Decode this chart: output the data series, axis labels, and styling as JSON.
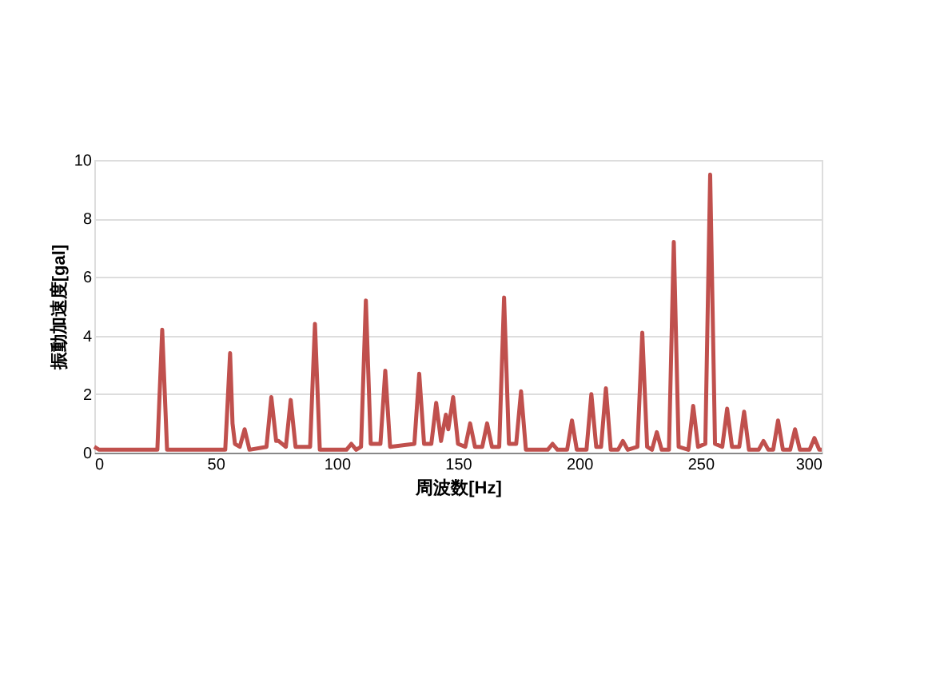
{
  "chart_data": {
    "type": "line",
    "xlabel": "周波数[Hz]",
    "ylabel": "振動加速度[gal]",
    "xlim": [
      0,
      300
    ],
    "xticks": [
      0,
      50,
      100,
      150,
      200,
      250,
      300
    ],
    "ylim": [
      0,
      10
    ],
    "yticks": [
      0,
      2,
      4,
      6,
      8,
      10
    ],
    "grid": "y",
    "legend": false,
    "marker": "none",
    "line_style": "solid",
    "series": [
      {
        "color": "#c0504d",
        "x": [
          0,
          2,
          10,
          20,
          26,
          28,
          30,
          40,
          54,
          56,
          57,
          58,
          60,
          62,
          64,
          71,
          73,
          75,
          76,
          79,
          81,
          83,
          89,
          91,
          93,
          104,
          106,
          108,
          110,
          112,
          114,
          118,
          120,
          122,
          132,
          134,
          136,
          139,
          141,
          143,
          145,
          146,
          148,
          150,
          153,
          155,
          157,
          160,
          162,
          164,
          167,
          169,
          171,
          174,
          176,
          178,
          187,
          189,
          191,
          195,
          197,
          199,
          203,
          205,
          207,
          209,
          211,
          213,
          216,
          218,
          220,
          224,
          226,
          228,
          230,
          232,
          234,
          237,
          239,
          241,
          245,
          247,
          249,
          252,
          254,
          256,
          259,
          261,
          263,
          266,
          268,
          270,
          274,
          276,
          278,
          280,
          282,
          284,
          287,
          289,
          291,
          295,
          297,
          299,
          300
        ],
        "values": [
          0.2,
          0.1,
          0.1,
          0.1,
          0.1,
          4.2,
          0.1,
          0.1,
          0.1,
          3.4,
          1.0,
          0.3,
          0.2,
          0.8,
          0.1,
          0.2,
          1.9,
          0.4,
          0.4,
          0.2,
          1.8,
          0.2,
          0.2,
          4.4,
          0.1,
          0.1,
          0.3,
          0.1,
          0.2,
          5.2,
          0.3,
          0.3,
          2.8,
          0.2,
          0.3,
          2.7,
          0.3,
          0.3,
          1.7,
          0.4,
          1.3,
          0.8,
          1.9,
          0.3,
          0.2,
          1.0,
          0.2,
          0.2,
          1.0,
          0.2,
          0.2,
          5.3,
          0.3,
          0.3,
          2.1,
          0.1,
          0.1,
          0.3,
          0.1,
          0.1,
          1.1,
          0.1,
          0.1,
          2.0,
          0.2,
          0.2,
          2.2,
          0.1,
          0.1,
          0.4,
          0.1,
          0.2,
          4.1,
          0.2,
          0.1,
          0.7,
          0.1,
          0.1,
          7.2,
          0.2,
          0.1,
          1.6,
          0.2,
          0.3,
          9.5,
          0.3,
          0.2,
          1.5,
          0.2,
          0.2,
          1.4,
          0.1,
          0.1,
          0.4,
          0.1,
          0.1,
          1.1,
          0.1,
          0.1,
          0.8,
          0.1,
          0.1,
          0.5,
          0.1,
          0.1
        ]
      }
    ]
  }
}
